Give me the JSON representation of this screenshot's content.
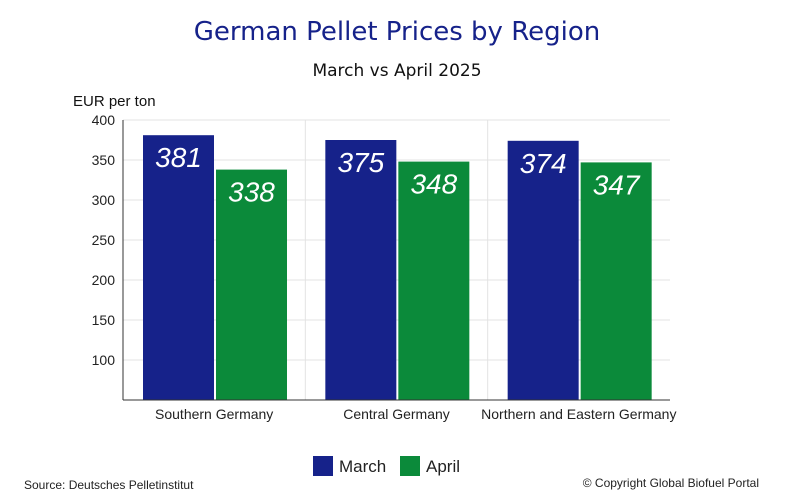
{
  "chart_data": {
    "type": "bar",
    "title": "German Pellet Prices by Region",
    "subtitle": "March vs April 2025",
    "ylabel": "EUR per ton",
    "xlabel": "",
    "categories": [
      "Southern Germany",
      "Central Germany",
      "Northern and Eastern Germany"
    ],
    "series": [
      {
        "name": "March",
        "values": [
          381,
          375,
          374
        ],
        "color": "#16228a"
      },
      {
        "name": "April",
        "values": [
          338,
          348,
          347
        ],
        "color": "#0b8a3a"
      }
    ],
    "ylim": [
      50,
      400
    ],
    "yticks": [
      100,
      150,
      200,
      250,
      300,
      350,
      400
    ],
    "grid": true,
    "legend": "bottom-center"
  },
  "colors": {
    "title": "#16228a",
    "grid": "#e3e3e3",
    "axis": "#333333"
  },
  "footer": {
    "source": "Source: Deutsches Pelletinstitut",
    "copyright": "© Copyright Global Biofuel Portal"
  }
}
